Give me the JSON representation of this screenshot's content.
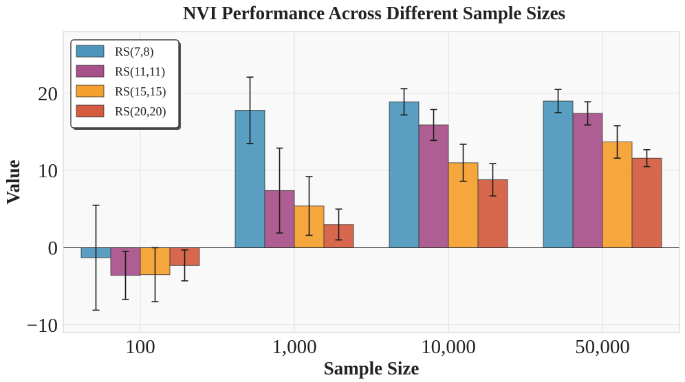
{
  "chart_data": {
    "type": "bar",
    "title": "NVI Performance Across Different Sample Sizes",
    "xlabel": "Sample Size",
    "ylabel": "Value",
    "categories": [
      "100",
      "1,000",
      "10,000",
      "50,000"
    ],
    "ylim": [
      -11,
      28
    ],
    "yticks": [
      -10,
      0,
      10,
      20
    ],
    "ytick_labels": [
      "−10",
      "0",
      "10",
      "20"
    ],
    "grid": true,
    "legend_position": "top-left",
    "series": [
      {
        "name": "RS(7,8)",
        "color": "#4C96BC",
        "values": [
          -1.3,
          17.8,
          18.9,
          19.0
        ],
        "errors": [
          6.8,
          4.3,
          1.7,
          1.5
        ]
      },
      {
        "name": "RS(11,11)",
        "color": "#A8508A",
        "values": [
          -3.6,
          7.4,
          15.9,
          17.4
        ],
        "errors": [
          3.1,
          5.5,
          2.0,
          1.5
        ]
      },
      {
        "name": "RS(15,15)",
        "color": "#F4A02E",
        "values": [
          -3.5,
          5.4,
          11.0,
          13.7
        ],
        "errors": [
          3.5,
          3.8,
          2.4,
          2.1
        ]
      },
      {
        "name": "RS(20,20)",
        "color": "#D45B3E",
        "values": [
          -2.3,
          3.0,
          8.8,
          11.6
        ],
        "errors": [
          2.0,
          2.0,
          2.1,
          1.1
        ]
      }
    ]
  }
}
